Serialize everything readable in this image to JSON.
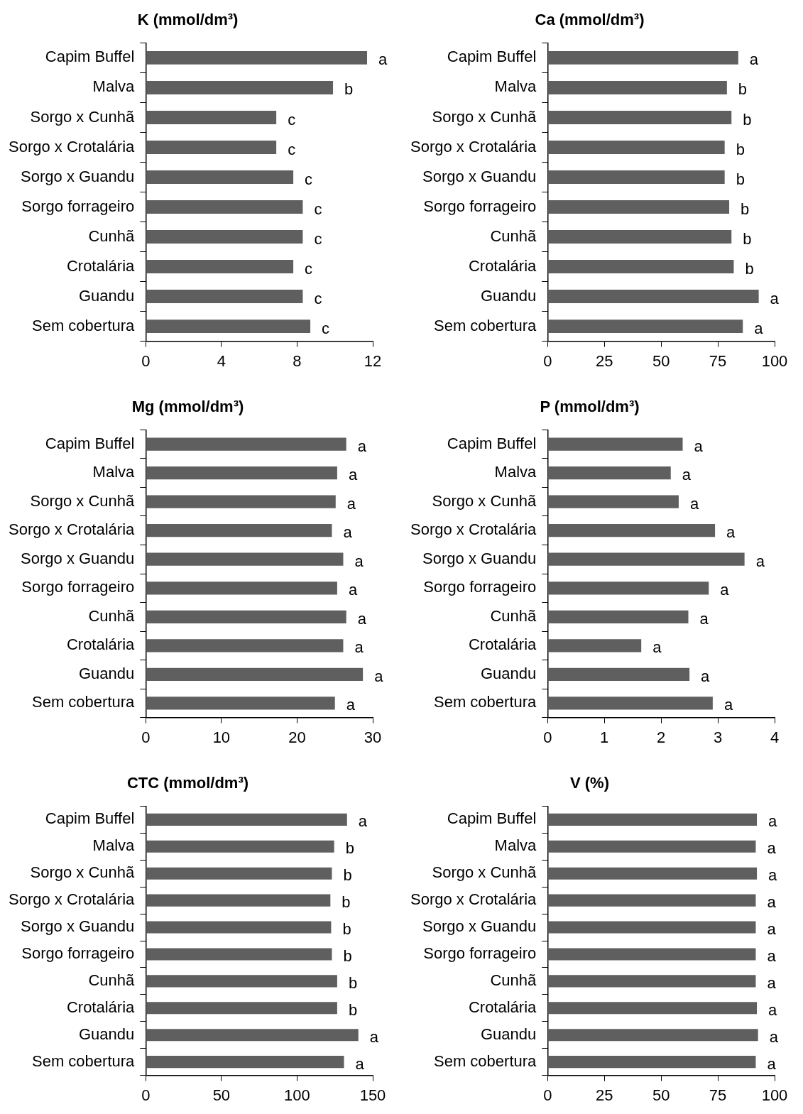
{
  "chart_data": [
    {
      "type": "bar",
      "orientation": "horizontal",
      "title": "K (mmol/dm³)",
      "categories": [
        "Capim Buffel",
        "Malva",
        "Sorgo x Cunhã",
        "Sorgo x Crotalária",
        "Sorgo x Guandu",
        "Sorgo forrageiro",
        "Cunhã",
        "Crotalária",
        "Guandu",
        "Sem cobertura"
      ],
      "values": [
        11.7,
        9.9,
        6.9,
        6.9,
        7.8,
        8.3,
        8.3,
        7.8,
        8.3,
        8.7
      ],
      "color": "#5f5f5f",
      "xlim": [
        0,
        12
      ],
      "xticks": [
        0,
        4,
        8,
        12
      ],
      "annotations": [
        {
          "text": "a",
          "x": 11.7,
          "y": "Capim Buffel"
        },
        {
          "text": "b",
          "x": 9.9,
          "y": "Malva"
        },
        {
          "text": "c",
          "x": 6.9,
          "y": "Sorgo x Cunhã"
        },
        {
          "text": "c",
          "x": 6.9,
          "y": "Sorgo x Crotalária"
        },
        {
          "text": "c",
          "x": 7.8,
          "y": "Sorgo x Guandu"
        },
        {
          "text": "c",
          "x": 8.3,
          "y": "Sorgo forrageiro"
        },
        {
          "text": "c",
          "x": 8.3,
          "y": "Cunhã"
        },
        {
          "text": "c",
          "x": 7.8,
          "y": "Crotalária"
        },
        {
          "text": "c",
          "x": 8.3,
          "y": "Guandu"
        },
        {
          "text": "c",
          "x": 8.7,
          "y": "Sem cobertura"
        }
      ]
    },
    {
      "type": "bar",
      "orientation": "horizontal",
      "title": "Ca (mmol/dm³)",
      "categories": [
        "Capim Buffel",
        "Malva",
        "Sorgo x Cunhã",
        "Sorgo x Crotalária",
        "Sorgo x Guandu",
        "Sorgo forrageiro",
        "Cunhã",
        "Crotalária",
        "Guandu",
        "Sem cobertura"
      ],
      "values": [
        84,
        79,
        81,
        78,
        78,
        80,
        81,
        82,
        93,
        86
      ],
      "color": "#5f5f5f",
      "xlim": [
        0,
        100
      ],
      "xticks": [
        0,
        25,
        50,
        75,
        100
      ],
      "annotations": [
        {
          "text": "a",
          "x": 84,
          "y": "Capim Buffel"
        },
        {
          "text": "b",
          "x": 79,
          "y": "Malva"
        },
        {
          "text": "b",
          "x": 81,
          "y": "Sorgo x Cunhã"
        },
        {
          "text": "b",
          "x": 78,
          "y": "Sorgo x Crotalária"
        },
        {
          "text": "b",
          "x": 78,
          "y": "Sorgo x Guandu"
        },
        {
          "text": "b",
          "x": 80,
          "y": "Sorgo forrageiro"
        },
        {
          "text": "b",
          "x": 81,
          "y": "Cunhã"
        },
        {
          "text": "b",
          "x": 82,
          "y": "Crotalária"
        },
        {
          "text": "a",
          "x": 93,
          "y": "Guandu"
        },
        {
          "text": "a",
          "x": 86,
          "y": "Sem cobertura"
        }
      ]
    },
    {
      "type": "bar",
      "orientation": "horizontal",
      "title": "Mg (mmol/dm³)",
      "categories": [
        "Capim Buffel",
        "Malva",
        "Sorgo x Cunhã",
        "Sorgo x Crotalária",
        "Sorgo x Guandu",
        "Sorgo forrageiro",
        "Cunhã",
        "Crotalária",
        "Guandu",
        "Sem cobertura"
      ],
      "values": [
        26.5,
        25.3,
        25.1,
        24.6,
        26.1,
        25.3,
        26.5,
        26.1,
        28.7,
        25.0
      ],
      "color": "#5f5f5f",
      "xlim": [
        0,
        30
      ],
      "xticks": [
        0,
        10,
        20,
        30
      ],
      "annotations": [
        {
          "text": "a",
          "x": 26.5,
          "y": "Capim Buffel"
        },
        {
          "text": "a",
          "x": 25.3,
          "y": "Malva"
        },
        {
          "text": "a",
          "x": 25.1,
          "y": "Sorgo x Cunhã"
        },
        {
          "text": "a",
          "x": 24.6,
          "y": "Sorgo x Crotalária"
        },
        {
          "text": "a",
          "x": 26.1,
          "y": "Sorgo x Guandu"
        },
        {
          "text": "a",
          "x": 25.3,
          "y": "Sorgo forrageiro"
        },
        {
          "text": "a",
          "x": 26.5,
          "y": "Cunhã"
        },
        {
          "text": "a",
          "x": 26.1,
          "y": "Crotalária"
        },
        {
          "text": "a",
          "x": 28.7,
          "y": "Guandu"
        },
        {
          "text": "a",
          "x": 25.0,
          "y": "Sem cobertura"
        }
      ]
    },
    {
      "type": "bar",
      "orientation": "horizontal",
      "title": "P (mmol/dm³)",
      "categories": [
        "Capim Buffel",
        "Malva",
        "Sorgo x Cunhã",
        "Sorgo x Crotalária",
        "Sorgo x Guandu",
        "Sorgo forrageiro",
        "Cunhã",
        "Crotalária",
        "Guandu",
        "Sem cobertura"
      ],
      "values": [
        2.38,
        2.17,
        2.31,
        2.95,
        3.47,
        2.84,
        2.48,
        1.65,
        2.5,
        2.91
      ],
      "color": "#5f5f5f",
      "xlim": [
        0,
        4
      ],
      "xticks": [
        0,
        1,
        2,
        3,
        4
      ],
      "annotations": [
        {
          "text": "a",
          "x": 2.38,
          "y": "Capim Buffel"
        },
        {
          "text": "a",
          "x": 2.17,
          "y": "Malva"
        },
        {
          "text": "a",
          "x": 2.31,
          "y": "Sorgo x Cunhã"
        },
        {
          "text": "a",
          "x": 2.95,
          "y": "Sorgo x Crotalária"
        },
        {
          "text": "a",
          "x": 3.47,
          "y": "Sorgo x Guandu"
        },
        {
          "text": "a",
          "x": 2.84,
          "y": "Sorgo forrageiro"
        },
        {
          "text": "a",
          "x": 2.48,
          "y": "Cunhã"
        },
        {
          "text": "a",
          "x": 1.65,
          "y": "Crotalária"
        },
        {
          "text": "a",
          "x": 2.5,
          "y": "Guandu"
        },
        {
          "text": "a",
          "x": 2.91,
          "y": "Sem cobertura"
        }
      ]
    },
    {
      "type": "bar",
      "orientation": "horizontal",
      "title": "CTC (mmol/dm³)",
      "categories": [
        "Capim Buffel",
        "Malva",
        "Sorgo x Cunhã",
        "Sorgo x Crotalária",
        "Sorgo x Guandu",
        "Sorgo forrageiro",
        "Cunhã",
        "Crotalária",
        "Guandu",
        "Sem cobertura"
      ],
      "values": [
        133,
        124.5,
        123,
        122,
        122.5,
        123,
        126.5,
        126.5,
        140.5,
        131
      ],
      "color": "#5f5f5f",
      "xlim": [
        0,
        150
      ],
      "xticks": [
        0,
        50,
        100,
        150
      ],
      "annotations": [
        {
          "text": "a",
          "x": 133,
          "y": "Capim Buffel"
        },
        {
          "text": "b",
          "x": 124.5,
          "y": "Malva"
        },
        {
          "text": "b",
          "x": 123,
          "y": "Sorgo x Cunhã"
        },
        {
          "text": "b",
          "x": 122,
          "y": "Sorgo x Crotalária"
        },
        {
          "text": "b",
          "x": 122.5,
          "y": "Sorgo x Guandu"
        },
        {
          "text": "b",
          "x": 123,
          "y": "Sorgo forrageiro"
        },
        {
          "text": "b",
          "x": 126.5,
          "y": "Cunhã"
        },
        {
          "text": "b",
          "x": 126.5,
          "y": "Crotalária"
        },
        {
          "text": "a",
          "x": 140.5,
          "y": "Guandu"
        },
        {
          "text": "a",
          "x": 131,
          "y": "Sem cobertura"
        }
      ]
    },
    {
      "type": "bar",
      "orientation": "horizontal",
      "title": "V (%)",
      "categories": [
        "Capim Buffel",
        "Malva",
        "Sorgo x Cunhã",
        "Sorgo x Crotalária",
        "Sorgo x Guandu",
        "Sorgo forrageiro",
        "Cunhã",
        "Crotalária",
        "Guandu",
        "Sem cobertura"
      ],
      "values": [
        92.2,
        91.7,
        92.2,
        91.7,
        91.7,
        91.7,
        91.7,
        92.2,
        92.7,
        91.7
      ],
      "color": "#5f5f5f",
      "xlim": [
        0,
        100
      ],
      "xticks": [
        0,
        25,
        50,
        75,
        100
      ],
      "annotations": [
        {
          "text": "a",
          "x": 92.2,
          "y": "Capim Buffel"
        },
        {
          "text": "a",
          "x": 91.7,
          "y": "Malva"
        },
        {
          "text": "a",
          "x": 92.2,
          "y": "Sorgo x Cunhã"
        },
        {
          "text": "a",
          "x": 91.7,
          "y": "Sorgo x Crotalária"
        },
        {
          "text": "a",
          "x": 91.7,
          "y": "Sorgo x Guandu"
        },
        {
          "text": "a",
          "x": 91.7,
          "y": "Sorgo forrageiro"
        },
        {
          "text": "a",
          "x": 91.7,
          "y": "Cunhã"
        },
        {
          "text": "a",
          "x": 92.2,
          "y": "Crotalária"
        },
        {
          "text": "a",
          "x": 92.7,
          "y": "Guandu"
        },
        {
          "text": "a",
          "x": 91.7,
          "y": "Sem cobertura"
        }
      ]
    }
  ]
}
